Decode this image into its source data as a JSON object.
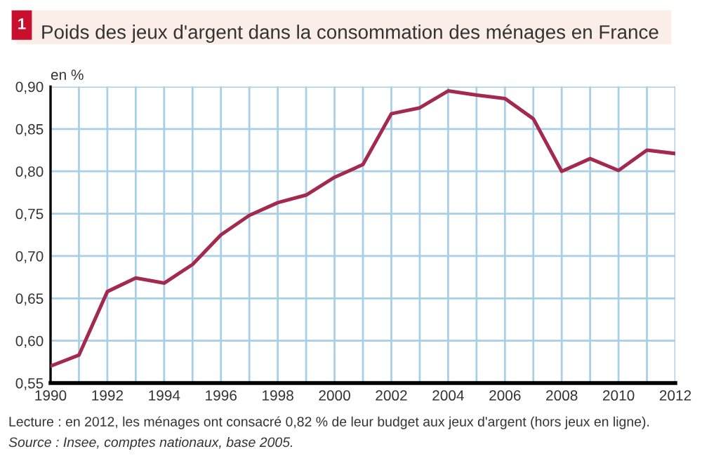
{
  "chart_data": {
    "type": "line",
    "title": "Poids des jeux d'argent dans la consommation des ménages en France",
    "ylabel": "en %",
    "annotations": [
      "1",
      "Lecture : en 2012, les ménages ont consacré 0,82 % de leur budget aux jeux d'argent (hors jeux en ligne).",
      "Source : Insee, comptes nationaux, base 2005."
    ],
    "x": [
      1990,
      1991,
      1992,
      1993,
      1994,
      1995,
      1996,
      1997,
      1998,
      1999,
      2000,
      2001,
      2002,
      2003,
      2004,
      2005,
      2006,
      2007,
      2008,
      2009,
      2010,
      2011,
      2012
    ],
    "series": [
      {
        "color": "#a3294f",
        "values": [
          0.57,
          0.583,
          0.658,
          0.674,
          0.668,
          0.69,
          0.725,
          0.748,
          0.763,
          0.772,
          0.793,
          0.808,
          0.868,
          0.875,
          0.895,
          0.89,
          0.886,
          0.862,
          0.8,
          0.815,
          0.801,
          0.825,
          0.821
        ]
      }
    ],
    "xlim": [
      1990,
      2012
    ],
    "xticks": [
      1990,
      {
        "value": 1991,
        "label": null
      },
      1992,
      {
        "value": 1993,
        "label": null
      },
      1994,
      {
        "value": 1995,
        "label": null
      },
      1996,
      {
        "value": 1997,
        "label": null
      },
      1998,
      {
        "value": 1999,
        "label": null
      },
      2000,
      {
        "value": 2001,
        "label": null
      },
      2002,
      {
        "value": 2003,
        "label": null
      },
      2004,
      {
        "value": 2005,
        "label": null
      },
      2006,
      {
        "value": 2007,
        "label": null
      },
      2008,
      {
        "value": 2009,
        "label": null
      },
      2010,
      {
        "value": 2011,
        "label": null
      },
      2012
    ],
    "ylim": [
      0.55,
      0.9
    ],
    "yticks": [
      {
        "value": 0.55,
        "label": "0,55"
      },
      {
        "value": 0.6,
        "label": "0,60"
      },
      {
        "value": 0.65,
        "label": "0,65"
      },
      {
        "value": 0.7,
        "label": "0,70"
      },
      {
        "value": 0.75,
        "label": "0,75"
      },
      {
        "value": 0.8,
        "label": "0,80"
      },
      {
        "value": 0.85,
        "label": "0,85"
      },
      {
        "value": 0.9,
        "label": "0,90"
      }
    ],
    "grid": true,
    "marker": "none",
    "line_style": "solid"
  }
}
